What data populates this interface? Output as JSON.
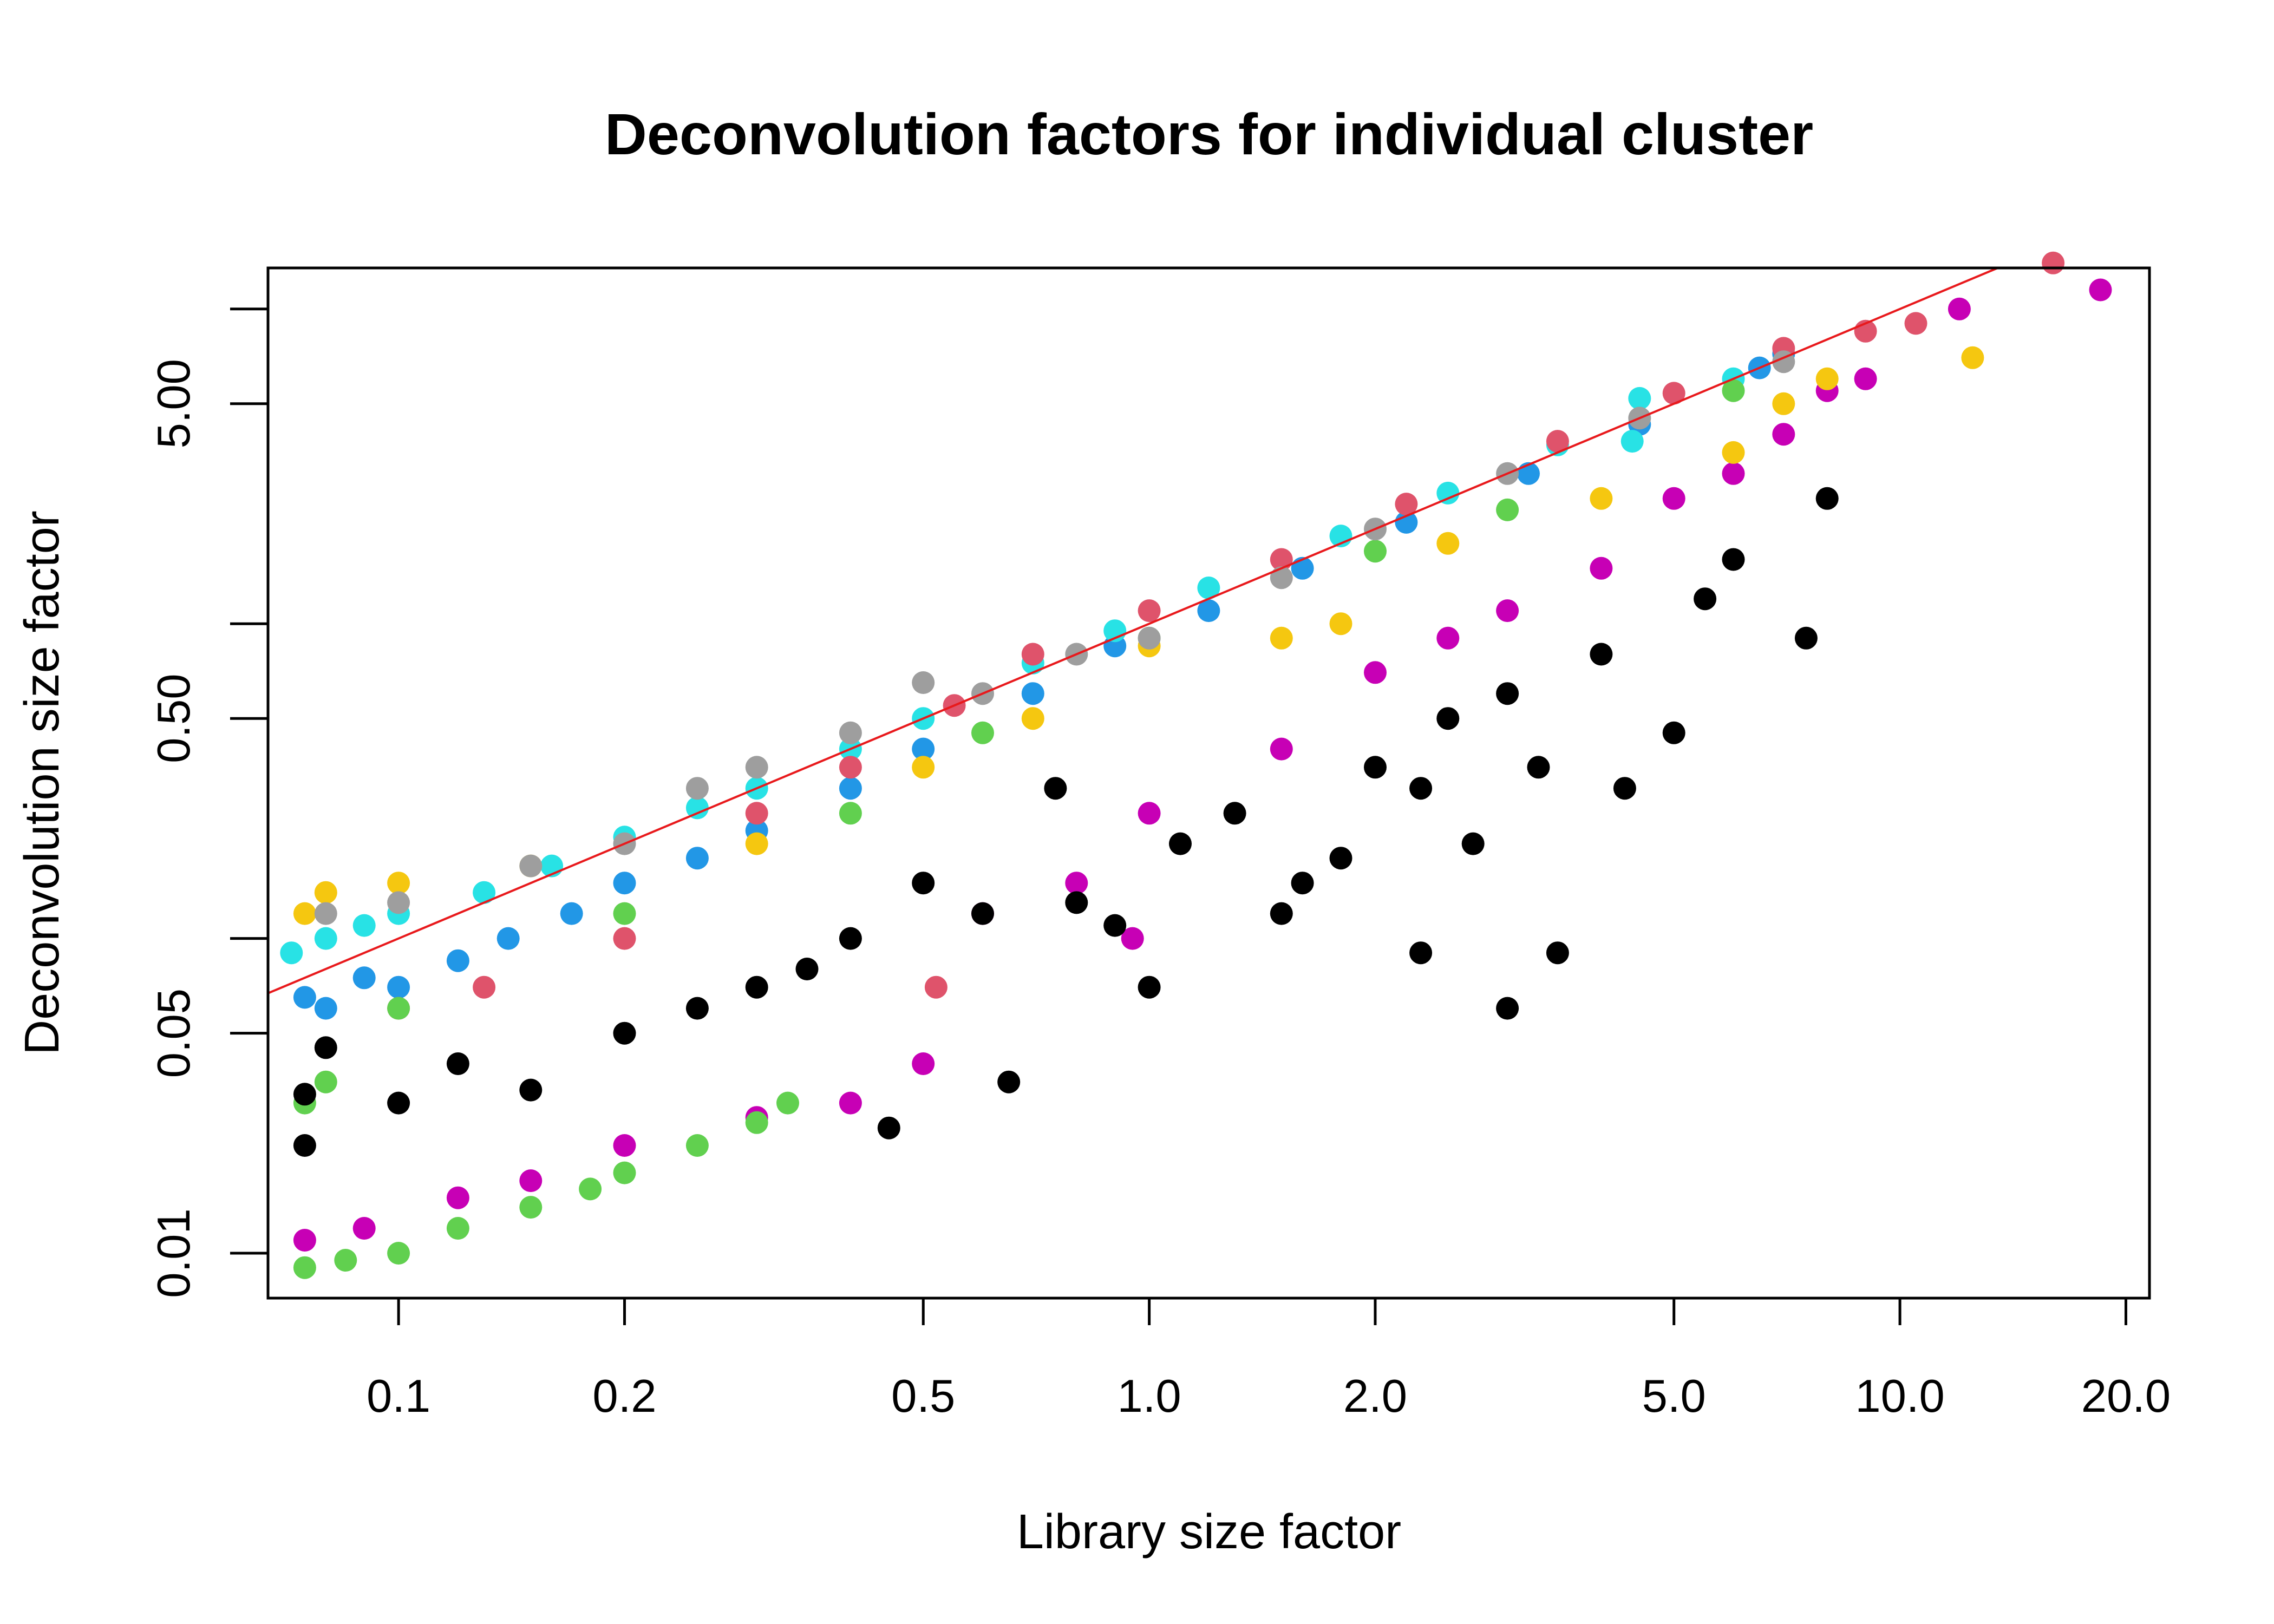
{
  "chart_data": {
    "type": "scatter",
    "title": "Deconvolution factors for individual cluster",
    "xlabel": "Library size factor",
    "ylabel": "Deconvolution size factor",
    "x_scale": "log",
    "y_scale": "log",
    "xlim": [
      0.067,
      21.5
    ],
    "ylim": [
      0.0072,
      13.5
    ],
    "x_ticks": [
      0.1,
      0.2,
      0.5,
      1.0,
      2.0,
      5.0,
      10.0,
      20.0
    ],
    "x_tick_labels": [
      "0.1",
      "0.2",
      "0.5",
      "1.0",
      "2.0",
      "5.0",
      "10.0",
      "20.0"
    ],
    "y_major_ticks": [
      0.01,
      0.05,
      0.5,
      5.0
    ],
    "y_tick_labels": [
      "0.01",
      "0.05",
      "0.50",
      "5.00"
    ],
    "y_minor_ticks": [
      0.1,
      1,
      10
    ],
    "grid": false,
    "legend": "none",
    "reference_line": {
      "color": "#e8191c",
      "slope": 1,
      "intercept": 0,
      "scale": "log-log"
    },
    "series": [
      {
        "color": "#2297e6",
        "points": [
          [
            0.075,
            0.065
          ],
          [
            0.08,
            0.06
          ],
          [
            0.09,
            0.075
          ],
          [
            0.1,
            0.07
          ],
          [
            0.12,
            0.085
          ],
          [
            0.14,
            0.1
          ],
          [
            0.17,
            0.12
          ],
          [
            0.2,
            0.15
          ],
          [
            0.25,
            0.18
          ],
          [
            0.3,
            0.22
          ],
          [
            0.4,
            0.3
          ],
          [
            0.5,
            0.4
          ],
          [
            0.7,
            0.6
          ],
          [
            0.9,
            0.85
          ],
          [
            1.2,
            1.1
          ],
          [
            1.6,
            1.5
          ],
          [
            2.2,
            2.1
          ],
          [
            3.2,
            3.0
          ],
          [
            4.5,
            4.3
          ],
          [
            6.5,
            6.5
          ],
          [
            7.0,
            7.2
          ]
        ]
      },
      {
        "color": "#28e2e5",
        "points": [
          [
            0.072,
            0.09
          ],
          [
            0.08,
            0.1
          ],
          [
            0.09,
            0.11
          ],
          [
            0.1,
            0.12
          ],
          [
            0.13,
            0.14
          ],
          [
            0.16,
            0.17
          ],
          [
            0.2,
            0.21
          ],
          [
            0.25,
            0.26
          ],
          [
            0.3,
            0.3
          ],
          [
            0.4,
            0.4
          ],
          [
            0.5,
            0.5
          ],
          [
            0.7,
            0.75
          ],
          [
            0.9,
            0.95
          ],
          [
            1.2,
            1.3
          ],
          [
            1.8,
            1.9
          ],
          [
            2.5,
            2.6
          ],
          [
            3.5,
            3.7
          ],
          [
            4.5,
            5.2
          ],
          [
            6.0,
            6.0
          ],
          [
            4.4,
            3.8
          ]
        ]
      },
      {
        "color": "#df536b",
        "points": [
          [
            0.1,
            0.06
          ],
          [
            0.13,
            0.07
          ],
          [
            0.2,
            0.1
          ],
          [
            0.3,
            0.25
          ],
          [
            0.4,
            0.35
          ],
          [
            0.55,
            0.55
          ],
          [
            0.7,
            0.8
          ],
          [
            1.0,
            1.1
          ],
          [
            1.5,
            1.6
          ],
          [
            2.2,
            2.4
          ],
          [
            3.5,
            3.8
          ],
          [
            5.0,
            5.4
          ],
          [
            7.0,
            7.5
          ],
          [
            9.0,
            8.5
          ],
          [
            10.5,
            9.0
          ],
          [
            16.0,
            14.0
          ],
          [
            0.52,
            0.07
          ]
        ]
      },
      {
        "color": "#c700b5",
        "points": [
          [
            0.075,
            0.011
          ],
          [
            0.09,
            0.012
          ],
          [
            0.12,
            0.015
          ],
          [
            0.15,
            0.017
          ],
          [
            0.2,
            0.022
          ],
          [
            0.3,
            0.027
          ],
          [
            0.4,
            0.03
          ],
          [
            0.5,
            0.04
          ],
          [
            0.6,
            0.12
          ],
          [
            0.8,
            0.15
          ],
          [
            1.0,
            0.25
          ],
          [
            1.5,
            0.4
          ],
          [
            2.0,
            0.7
          ],
          [
            2.5,
            0.9
          ],
          [
            3.0,
            1.1
          ],
          [
            4.0,
            1.5
          ],
          [
            5.0,
            2.5
          ],
          [
            6.0,
            3.0
          ],
          [
            7.0,
            4.0
          ],
          [
            8.0,
            5.5
          ],
          [
            9.0,
            6.0
          ],
          [
            12.0,
            10.0
          ],
          [
            18.5,
            11.5
          ],
          [
            0.95,
            0.1
          ]
        ]
      },
      {
        "color": "#61d04f",
        "points": [
          [
            0.075,
            0.009
          ],
          [
            0.085,
            0.0095
          ],
          [
            0.1,
            0.01
          ],
          [
            0.12,
            0.012
          ],
          [
            0.15,
            0.014
          ],
          [
            0.18,
            0.016
          ],
          [
            0.2,
            0.018
          ],
          [
            0.25,
            0.022
          ],
          [
            0.3,
            0.026
          ],
          [
            0.33,
            0.03
          ],
          [
            0.075,
            0.03
          ],
          [
            0.08,
            0.035
          ],
          [
            0.1,
            0.06
          ],
          [
            0.2,
            0.12
          ],
          [
            0.4,
            0.25
          ],
          [
            0.6,
            0.45
          ],
          [
            1.0,
            0.9
          ],
          [
            2.0,
            1.7
          ],
          [
            3.0,
            2.3
          ],
          [
            6.0,
            5.5
          ]
        ]
      },
      {
        "color": "#f5c710",
        "points": [
          [
            0.075,
            0.12
          ],
          [
            0.08,
            0.14
          ],
          [
            0.1,
            0.15
          ],
          [
            0.15,
            0.17
          ],
          [
            0.3,
            0.2
          ],
          [
            0.5,
            0.35
          ],
          [
            0.7,
            0.5
          ],
          [
            1.0,
            0.85
          ],
          [
            1.5,
            0.9
          ],
          [
            1.8,
            1.0
          ],
          [
            2.5,
            1.8
          ],
          [
            4.0,
            2.5
          ],
          [
            6.0,
            3.5
          ],
          [
            7.0,
            5.0
          ],
          [
            8.0,
            6.0
          ],
          [
            12.5,
            7.0
          ]
        ]
      },
      {
        "color": "#9e9e9e",
        "points": [
          [
            0.08,
            0.12
          ],
          [
            0.1,
            0.13
          ],
          [
            0.15,
            0.17
          ],
          [
            0.2,
            0.2
          ],
          [
            0.25,
            0.3
          ],
          [
            0.3,
            0.35
          ],
          [
            0.4,
            0.45
          ],
          [
            0.5,
            0.65
          ],
          [
            0.6,
            0.6
          ],
          [
            0.8,
            0.8
          ],
          [
            1.0,
            0.9
          ],
          [
            1.5,
            1.4
          ],
          [
            2.0,
            2.0
          ],
          [
            3.0,
            3.0
          ],
          [
            4.5,
            4.5
          ],
          [
            7.0,
            6.8
          ]
        ]
      },
      {
        "color": "#000000",
        "points": [
          [
            0.075,
            0.032
          ],
          [
            0.075,
            0.022
          ],
          [
            0.08,
            0.045
          ],
          [
            0.1,
            0.03
          ],
          [
            0.12,
            0.04
          ],
          [
            0.15,
            0.033
          ],
          [
            0.2,
            0.05
          ],
          [
            0.25,
            0.06
          ],
          [
            0.3,
            0.07
          ],
          [
            0.35,
            0.08
          ],
          [
            0.4,
            0.1
          ],
          [
            0.45,
            0.025
          ],
          [
            0.5,
            0.15
          ],
          [
            0.6,
            0.12
          ],
          [
            0.65,
            0.035
          ],
          [
            0.75,
            0.3
          ],
          [
            0.8,
            0.13
          ],
          [
            0.9,
            0.11
          ],
          [
            1.0,
            0.07
          ],
          [
            1.1,
            0.2
          ],
          [
            1.3,
            0.25
          ],
          [
            1.6,
            0.15
          ],
          [
            1.8,
            0.18
          ],
          [
            2.0,
            0.35
          ],
          [
            2.3,
            0.3
          ],
          [
            2.5,
            0.5
          ],
          [
            2.7,
            0.2
          ],
          [
            3.0,
            0.06
          ],
          [
            3.0,
            0.6
          ],
          [
            3.3,
            0.35
          ],
          [
            3.5,
            0.09
          ],
          [
            4.0,
            0.8
          ],
          [
            4.3,
            0.3
          ],
          [
            5.0,
            0.45
          ],
          [
            5.5,
            1.2
          ],
          [
            6.0,
            1.6
          ],
          [
            7.5,
            0.9
          ],
          [
            8.0,
            2.5
          ],
          [
            2.3,
            0.09
          ],
          [
            1.5,
            0.12
          ]
        ]
      }
    ]
  }
}
